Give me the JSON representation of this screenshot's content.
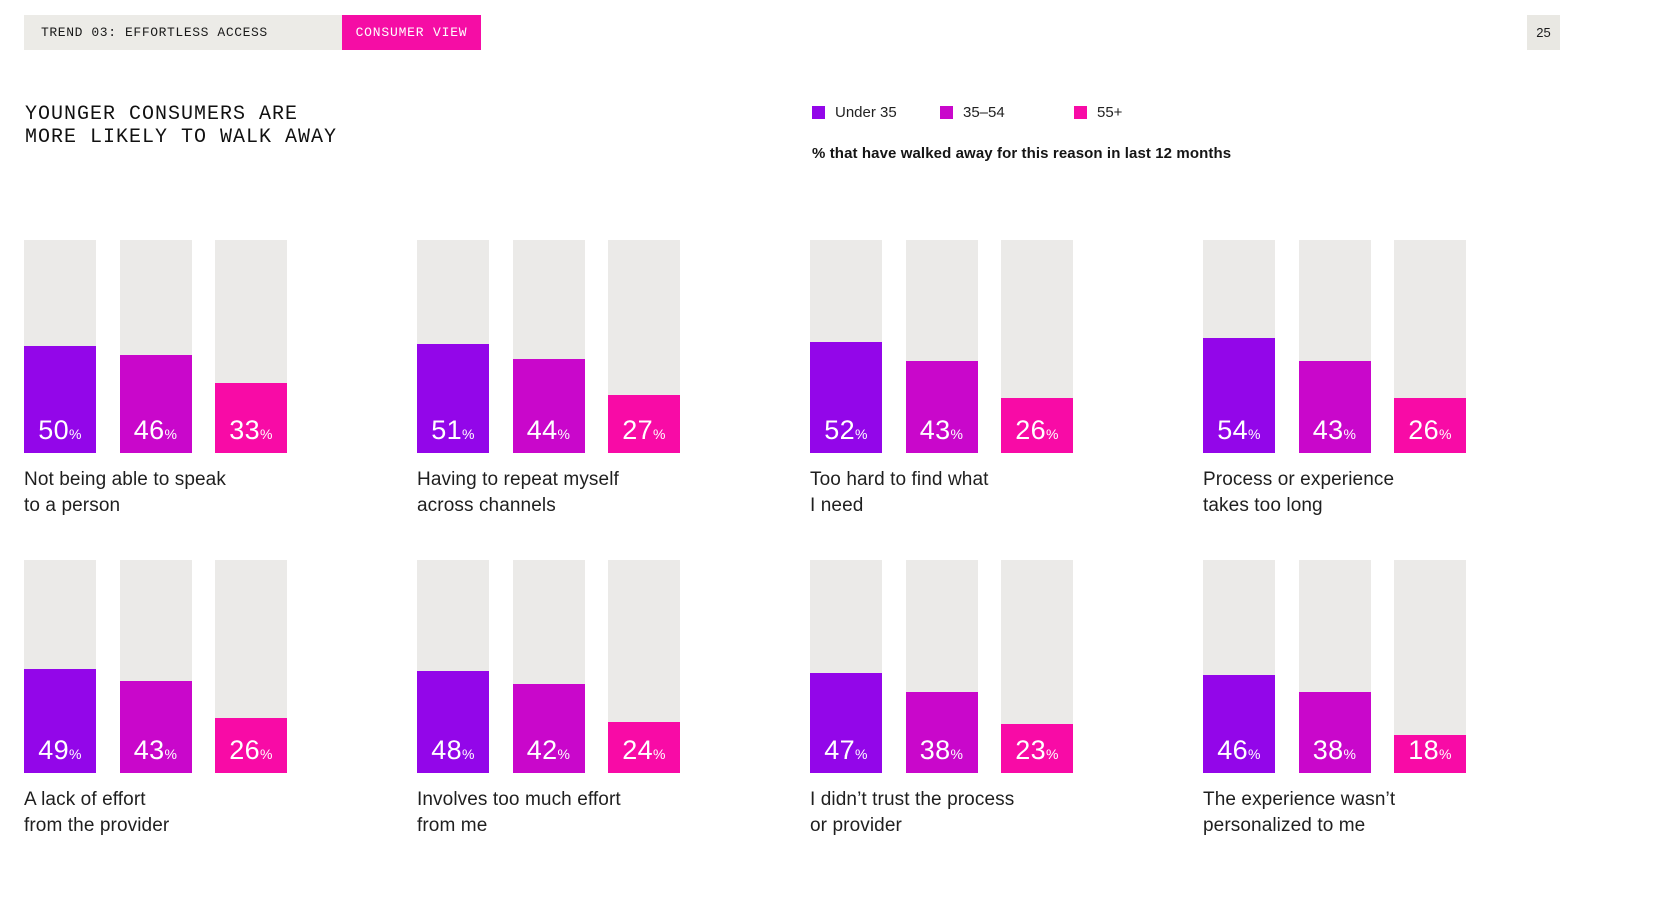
{
  "header": {
    "trend_label": "TREND 03: EFFORTLESS ACCESS",
    "view_label": "CONSUMER VIEW",
    "page_number": "25"
  },
  "title": {
    "line1": "YOUNGER CONSUMERS ARE",
    "line2": "MORE LIKELY TO WALK AWAY"
  },
  "subtitle": "% that have walked away for this reason in last 12 months",
  "legend": {
    "items": [
      {
        "label": "Under 35",
        "color": "#9306e9"
      },
      {
        "label": "35–54",
        "color": "#c907cb"
      },
      {
        "label": "55+",
        "color": "#f80ba6"
      }
    ]
  },
  "chart_data": {
    "type": "bar",
    "unit": "%",
    "ylim": [
      0,
      100
    ],
    "title": "YOUNGER CONSUMERS ARE MORE LIKELY TO WALK AWAY",
    "subtitle": "% that have walked away for this reason in last 12 months",
    "series_names": [
      "Under 35",
      "35–54",
      "55+"
    ],
    "colors": [
      "#9306e9",
      "#c907cb",
      "#f80ba6"
    ],
    "track_color": "#ebeae8",
    "groups": [
      {
        "label": "Not being able to speak to a person",
        "label_lines": [
          "Not being able to speak",
          "to a person"
        ],
        "values": [
          50,
          46,
          33
        ]
      },
      {
        "label": "Having to repeat myself across channels",
        "label_lines": [
          "Having to repeat myself",
          "across channels"
        ],
        "values": [
          51,
          44,
          27
        ]
      },
      {
        "label": "Too hard to find what I need",
        "label_lines": [
          "Too hard to find what",
          "I need"
        ],
        "values": [
          52,
          43,
          26
        ]
      },
      {
        "label": "Process or experience takes too long",
        "label_lines": [
          "Process or experience",
          "takes too long"
        ],
        "values": [
          54,
          43,
          26
        ]
      },
      {
        "label": "A lack of effort from the provider",
        "label_lines": [
          "A lack of effort",
          "from the provider"
        ],
        "values": [
          49,
          43,
          26
        ]
      },
      {
        "label": "Involves too much effort from me",
        "label_lines": [
          "Involves too much effort",
          "from me"
        ],
        "values": [
          48,
          42,
          24
        ]
      },
      {
        "label": "I didn’t trust the process or provider",
        "label_lines": [
          "I didn’t trust the process",
          "or provider"
        ],
        "values": [
          47,
          38,
          23
        ]
      },
      {
        "label": "The experience wasn’t personalized to me",
        "label_lines": [
          "The experience wasn’t",
          "personalized to me"
        ],
        "values": [
          46,
          38,
          18
        ]
      }
    ]
  }
}
